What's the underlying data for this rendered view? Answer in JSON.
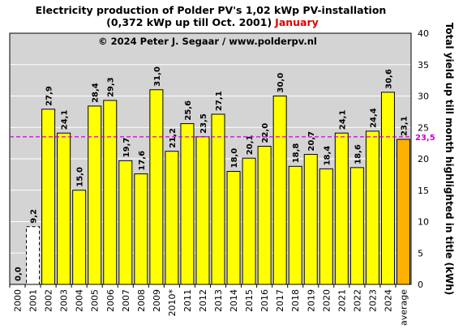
{
  "chart_data": {
    "type": "bar",
    "title_line1": "Electricity production  of Polder  PV's  1,02 kWp PV-installation",
    "title_line2_black": "(0,372 kWp up till Oct. 2001)",
    "title_line2_red": "January",
    "copyright": "© 2024 Peter J. Segaar / www.polderpv.nl",
    "ylabel": "Total yield up till month highlighted in title (kWh)",
    "ylim": [
      0,
      40
    ],
    "yticks": [
      0,
      5,
      10,
      15,
      20,
      25,
      30,
      35,
      40
    ],
    "grid": true,
    "categories": [
      "2000",
      "2001",
      "2002",
      "2003",
      "2004",
      "2005",
      "2006",
      "2007",
      "2008",
      "2009",
      "2010*",
      "2011",
      "2012",
      "2013",
      "2014",
      "2015",
      "2016",
      "2017",
      "2018",
      "2019",
      "2020",
      "2021",
      "2022",
      "2023",
      "2024",
      "average"
    ],
    "values": [
      0.0,
      9.2,
      27.9,
      24.1,
      15.0,
      28.4,
      29.3,
      19.7,
      17.6,
      31.0,
      21.2,
      25.6,
      23.5,
      27.1,
      18.0,
      20.1,
      22.0,
      30.0,
      18.8,
      20.7,
      18.4,
      24.1,
      18.6,
      24.4,
      30.6,
      23.1
    ],
    "value_labels": [
      "0,0",
      "9,2",
      "27,9",
      "24,1",
      "15,0",
      "28,4",
      "29,3",
      "19,7",
      "17,6",
      "31,0",
      "21,2",
      "25,6",
      "23,5",
      "27,1",
      "18,0",
      "20,1",
      "22,0",
      "30,0",
      "18,8",
      "20,7",
      "18,4",
      "24,1",
      "18,6",
      "24,4",
      "30,6",
      "23,1"
    ],
    "reference_line": {
      "value": 23.5,
      "label": "23,5"
    },
    "colors": {
      "bar": "#ffff00",
      "bar_2001": "#ffffff",
      "average": "#ffb000",
      "label_grey": "#808080",
      "label_average": "#e00000",
      "reference": "#d000d0",
      "plot_bg": "#d4d4d4",
      "grid": "#ffffff"
    }
  }
}
